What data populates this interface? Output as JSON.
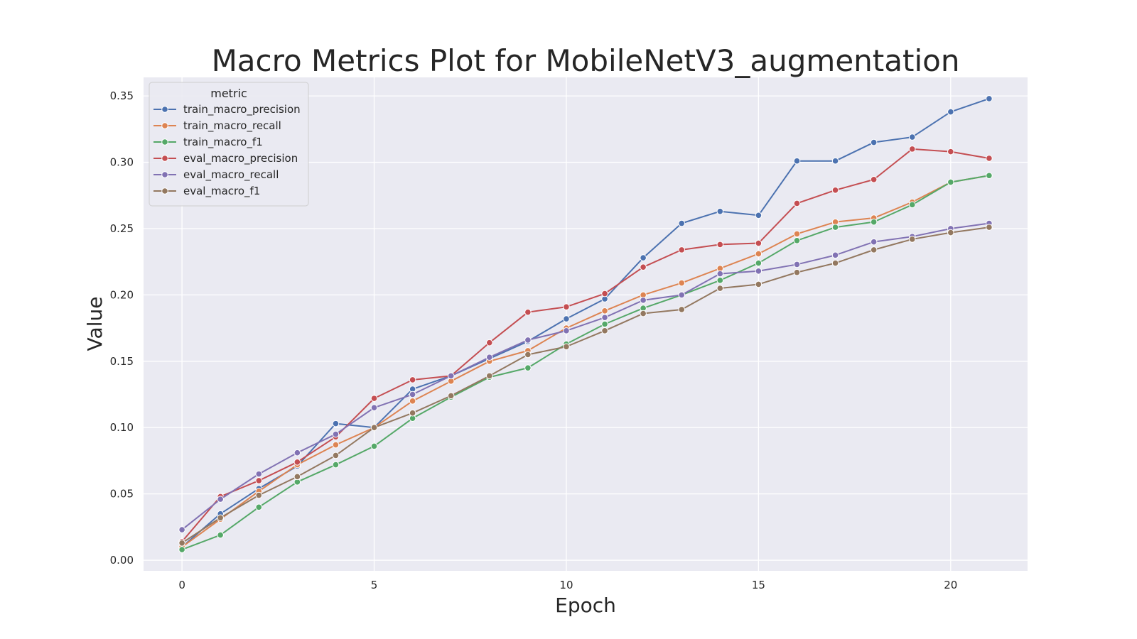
{
  "chart_data": {
    "type": "line",
    "title": "Macro Metrics Plot for MobileNetV3_augmentation",
    "xlabel": "Epoch",
    "ylabel": "Value",
    "xlim": [
      -1,
      22
    ],
    "ylim": [
      -0.008,
      0.364
    ],
    "xticks": [
      0,
      5,
      10,
      15,
      20
    ],
    "yticks": [
      "0.00",
      "0.05",
      "0.10",
      "0.15",
      "0.20",
      "0.25",
      "0.30",
      "0.35"
    ],
    "grid": true,
    "legend_title": "metric",
    "legend_position": "top-left",
    "x": [
      0,
      1,
      2,
      3,
      4,
      5,
      6,
      7,
      8,
      9,
      10,
      11,
      12,
      13,
      14,
      15,
      16,
      17,
      18,
      19,
      20,
      21
    ],
    "series": [
      {
        "name": "train_macro_precision",
        "color": "#4c72b0",
        "values": [
          0.01,
          0.035,
          0.054,
          0.071,
          0.103,
          0.1,
          0.129,
          0.139,
          0.152,
          0.165,
          0.182,
          0.197,
          0.228,
          0.254,
          0.263,
          0.26,
          0.301,
          0.301,
          0.315,
          0.319,
          0.338,
          0.348
        ]
      },
      {
        "name": "train_macro_recall",
        "color": "#dd8452",
        "values": [
          0.01,
          0.031,
          0.052,
          0.072,
          0.087,
          0.1,
          0.12,
          0.135,
          0.15,
          0.158,
          0.175,
          0.188,
          0.2,
          0.209,
          0.22,
          0.231,
          0.246,
          0.255,
          0.258,
          0.27,
          0.285,
          0.29
        ]
      },
      {
        "name": "train_macro_f1",
        "color": "#55a868",
        "values": [
          0.008,
          0.019,
          0.04,
          0.059,
          0.072,
          0.086,
          0.107,
          0.123,
          0.138,
          0.145,
          0.163,
          0.178,
          0.19,
          0.2,
          0.211,
          0.224,
          0.241,
          0.251,
          0.255,
          0.268,
          0.285,
          0.29
        ]
      },
      {
        "name": "eval_macro_precision",
        "color": "#c44e52",
        "values": [
          0.014,
          0.048,
          0.06,
          0.074,
          0.093,
          0.122,
          0.136,
          0.139,
          0.164,
          0.187,
          0.191,
          0.201,
          0.221,
          0.234,
          0.238,
          0.239,
          0.269,
          0.279,
          0.287,
          0.31,
          0.308,
          0.303
        ]
      },
      {
        "name": "eval_macro_recall",
        "color": "#8172b3",
        "values": [
          0.023,
          0.046,
          0.065,
          0.081,
          0.095,
          0.115,
          0.125,
          0.139,
          0.153,
          0.166,
          0.173,
          0.183,
          0.196,
          0.2,
          0.216,
          0.218,
          0.223,
          0.23,
          0.24,
          0.244,
          0.25,
          0.254
        ]
      },
      {
        "name": "eval_macro_f1",
        "color": "#937860",
        "values": [
          0.013,
          0.032,
          0.049,
          0.063,
          0.079,
          0.1,
          0.111,
          0.124,
          0.139,
          0.155,
          0.161,
          0.173,
          0.186,
          0.189,
          0.205,
          0.208,
          0.217,
          0.224,
          0.234,
          0.242,
          0.247,
          0.251
        ]
      }
    ]
  }
}
